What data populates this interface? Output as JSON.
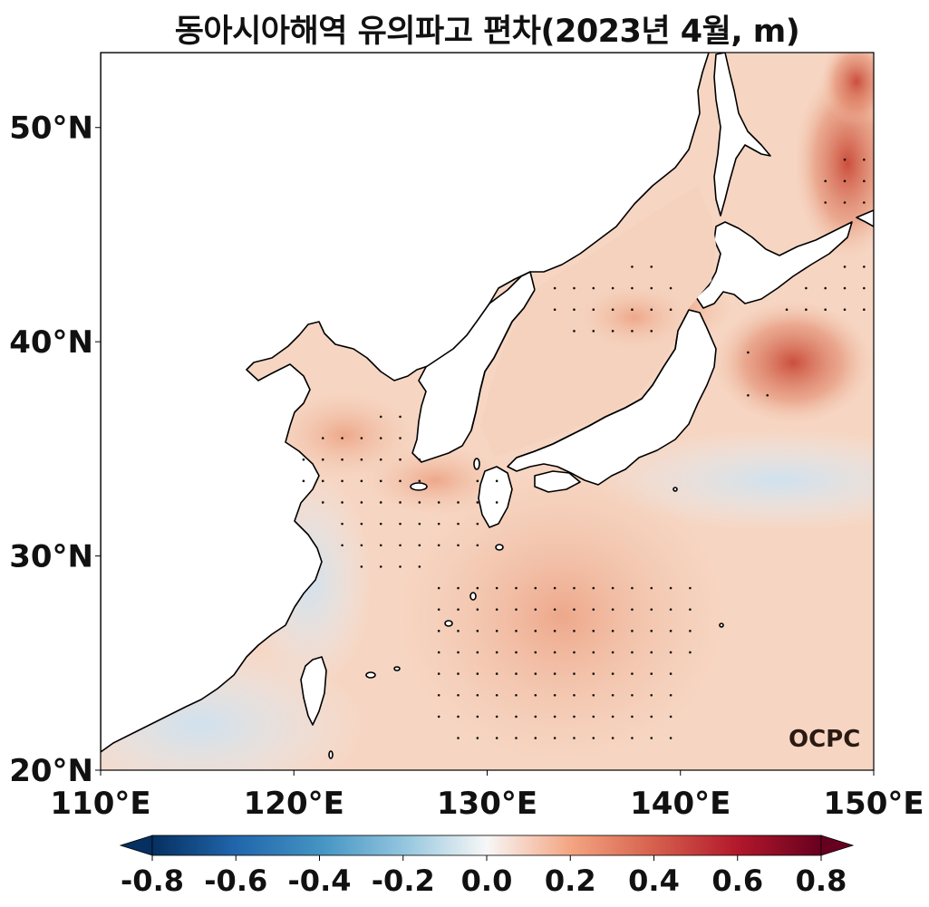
{
  "title": "동아시아해역 유의파고 편차(2023년 4월, m)",
  "logo_text": "OCPC",
  "lon_ticks": [
    {
      "value": 110,
      "label": "110°E"
    },
    {
      "value": 120,
      "label": "120°E"
    },
    {
      "value": 130,
      "label": "130°E"
    },
    {
      "value": 140,
      "label": "140°E"
    },
    {
      "value": 150,
      "label": "150°E"
    }
  ],
  "lat_ticks": [
    {
      "value": 20,
      "label": "20°N"
    },
    {
      "value": 30,
      "label": "30°N"
    },
    {
      "value": 40,
      "label": "40°N"
    },
    {
      "value": 50,
      "label": "50°N"
    }
  ],
  "extent": {
    "lon": [
      110,
      150
    ],
    "lat": [
      20,
      53.5
    ]
  },
  "colorbar": {
    "min": -0.8,
    "max": 0.8,
    "ticks": [
      "-0.8",
      "-0.6",
      "-0.4",
      "-0.2",
      "0.0",
      "0.2",
      "0.4",
      "0.6",
      "0.8"
    ],
    "colormap": "RdBu_r",
    "extend": "both"
  },
  "colors": {
    "land": "#ffffff",
    "coastline": "#000000",
    "stipple": "#111111",
    "base_anomaly": "#f6d8c6",
    "strong_anomaly": "#d9624e",
    "negative_anomaly": "#dbe8f1",
    "logo": "#2b1a12"
  }
}
